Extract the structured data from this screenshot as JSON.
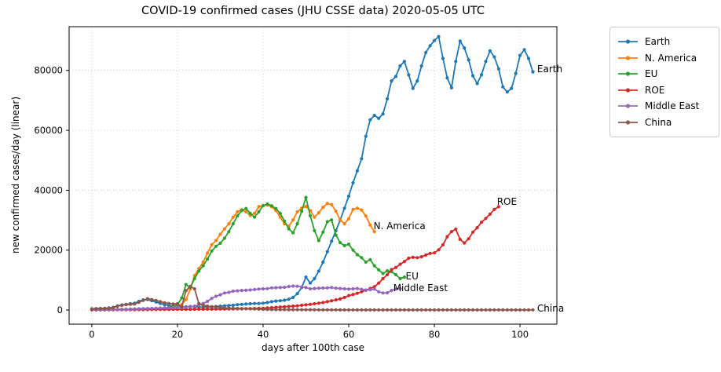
{
  "title": "COVID-19 confirmed cases (JHU CSSE data) 2020-05-05 UTC",
  "colors": {
    "background": "#ffffff",
    "frame": "#000000",
    "grid": "#c9c9c9",
    "text": "#000000",
    "legend_border": "#cccccc"
  },
  "chart_data": {
    "type": "line",
    "title": "COVID-19 confirmed cases (JHU CSSE data) 2020-05-05 UTC",
    "xlabel": "days after 100th case",
    "ylabel": "new confirmed cases/day (linear)",
    "xlim": [
      -5.3,
      108.6
    ],
    "ylim": [
      -4700,
      94600
    ],
    "xticks": [
      0,
      20,
      40,
      60,
      80,
      100
    ],
    "yticks": [
      0,
      20000,
      40000,
      60000,
      80000
    ],
    "grid": true,
    "grid_style": "dotted",
    "marker": "circle",
    "line_width": 1.8,
    "marker_radius": 2.1,
    "legend_position": "outside-right",
    "series": [
      {
        "name": "Earth",
        "color": "#1f77b4",
        "x_start": 0,
        "annotation": {
          "text": "Earth",
          "x": 104,
          "y": 80500
        },
        "values": [
          400,
          500,
          550,
          600,
          700,
          900,
          1400,
          1700,
          1900,
          2100,
          2300,
          2900,
          3400,
          3500,
          3100,
          2700,
          2200,
          1800,
          1500,
          1300,
          1200,
          1100,
          1100,
          1200,
          1100,
          1000,
          1000,
          1000,
          1100,
          1200,
          1300,
          1400,
          1500,
          1600,
          1800,
          1900,
          2000,
          2100,
          2200,
          2200,
          2300,
          2500,
          2800,
          3000,
          3100,
          3300,
          3600,
          4200,
          5500,
          7500,
          11000,
          9000,
          10500,
          13000,
          16000,
          19500,
          23000,
          26500,
          30000,
          34000,
          38000,
          42500,
          46500,
          50500,
          58000,
          63500,
          65000,
          64000,
          65500,
          70500,
          76500,
          78000,
          81500,
          83000,
          78500,
          74000,
          76500,
          81500,
          86000,
          88200,
          90000,
          91300,
          84000,
          77500,
          74200,
          83000,
          89800,
          87500,
          83500,
          78200,
          75600,
          78500,
          83000,
          86500,
          84500,
          80500,
          74500,
          72800,
          74000,
          79000,
          85000,
          86900,
          84000,
          79500
        ]
      },
      {
        "name": "N. America",
        "color": "#ff7f0e",
        "x_start": 0,
        "annotation": {
          "text": "N. America",
          "x": 65.8,
          "y": 28000
        },
        "values": [
          100,
          120,
          140,
          160,
          180,
          200,
          220,
          250,
          280,
          310,
          350,
          400,
          450,
          500,
          550,
          600,
          650,
          700,
          800,
          1000,
          1300,
          1800,
          3500,
          7000,
          11500,
          13800,
          16000,
          19000,
          21800,
          23200,
          25300,
          27100,
          28800,
          31000,
          32800,
          33500,
          32800,
          31600,
          32300,
          34500,
          34900,
          35100,
          34500,
          33200,
          31000,
          28800,
          28000,
          30100,
          32800,
          34000,
          34600,
          33200,
          31000,
          32500,
          34300,
          35600,
          35200,
          33000,
          30100,
          28800,
          30500,
          33600,
          34000,
          33400,
          31400,
          28400,
          26200
        ]
      },
      {
        "name": "EU",
        "color": "#2ca02c",
        "x_start": 0,
        "annotation": {
          "text": "EU",
          "x": 73.3,
          "y": 11300
        },
        "values": [
          100,
          110,
          120,
          130,
          140,
          150,
          160,
          180,
          200,
          220,
          250,
          280,
          320,
          360,
          400,
          450,
          550,
          700,
          900,
          1300,
          1750,
          4000,
          8500,
          7500,
          10500,
          13000,
          14800,
          17000,
          19700,
          21300,
          22300,
          24000,
          26200,
          28800,
          31400,
          33200,
          33900,
          32300,
          31000,
          32800,
          34800,
          35400,
          34800,
          33900,
          32300,
          29700,
          27100,
          25800,
          28800,
          33000,
          37600,
          31500,
          26500,
          23200,
          26000,
          29500,
          30100,
          25000,
          22500,
          21500,
          22000,
          20000,
          18500,
          17500,
          16000,
          16800,
          14800,
          13400,
          12200,
          13100,
          12800,
          11800,
          10500,
          11000
        ]
      },
      {
        "name": "ROE",
        "color": "#d62728",
        "x_start": 0,
        "annotation": {
          "text": "ROE",
          "x": 94.6,
          "y": 36200
        },
        "values": [
          50,
          55,
          60,
          65,
          70,
          80,
          90,
          100,
          110,
          120,
          130,
          140,
          150,
          160,
          170,
          180,
          190,
          200,
          210,
          220,
          230,
          240,
          250,
          260,
          270,
          280,
          290,
          300,
          310,
          320,
          330,
          340,
          360,
          380,
          400,
          420,
          450,
          480,
          520,
          560,
          600,
          700,
          800,
          900,
          1000,
          1100,
          1200,
          1300,
          1400,
          1600,
          1750,
          1900,
          2100,
          2300,
          2500,
          2800,
          3100,
          3400,
          3700,
          4200,
          4800,
          5200,
          5600,
          6100,
          6600,
          7200,
          7800,
          9000,
          10500,
          11800,
          13500,
          14200,
          15300,
          16200,
          17300,
          17600,
          17500,
          17800,
          18350,
          18900,
          19100,
          20100,
          21800,
          24500,
          26200,
          27000,
          23600,
          22400,
          23800,
          26000,
          27500,
          29300,
          30600,
          32000,
          33600,
          34500
        ]
      },
      {
        "name": "Middle East",
        "color": "#9467bd",
        "x_start": 0,
        "annotation": {
          "text": "Middle East",
          "x": 70.4,
          "y": 7400
        },
        "values": [
          100,
          110,
          120,
          130,
          140,
          160,
          180,
          200,
          250,
          300,
          350,
          400,
          450,
          500,
          550,
          600,
          650,
          700,
          750,
          800,
          850,
          900,
          1000,
          1100,
          1300,
          1700,
          2200,
          2900,
          3900,
          4600,
          5100,
          5700,
          5900,
          6300,
          6400,
          6550,
          6600,
          6700,
          6850,
          7000,
          7100,
          7150,
          7400,
          7450,
          7500,
          7600,
          7860,
          8000,
          7950,
          7700,
          7500,
          7100,
          7200,
          7300,
          7350,
          7400,
          7500,
          7300,
          7200,
          7100,
          7000,
          7100,
          7200,
          6900,
          6700,
          6800,
          7000,
          6100,
          5700,
          5750,
          6550,
          7000,
          7200
        ]
      },
      {
        "name": "China",
        "color": "#8c564b",
        "x_start": 0,
        "annotation": {
          "text": "China",
          "x": 104,
          "y": 600
        },
        "values": [
          300,
          400,
          450,
          500,
          600,
          800,
          1300,
          1600,
          1800,
          1900,
          2000,
          2600,
          3200,
          3800,
          3500,
          3200,
          2800,
          2400,
          2200,
          2000,
          2100,
          1100,
          6500,
          7900,
          7100,
          2200,
          1600,
          1300,
          1100,
          1050,
          900,
          700,
          650,
          600,
          550,
          500,
          450,
          400,
          350,
          300,
          250,
          200,
          180,
          160,
          150,
          140,
          130,
          120,
          110,
          100,
          100,
          90,
          85,
          80,
          75,
          70,
          65,
          60,
          55,
          50,
          50,
          50,
          45,
          45,
          40,
          40,
          40,
          40,
          40,
          40,
          40,
          40,
          40,
          40,
          40,
          40,
          40,
          40,
          40,
          40,
          40,
          40,
          40,
          40,
          40,
          40,
          40,
          40,
          40,
          40,
          40,
          40,
          40,
          40,
          40,
          40,
          40,
          40,
          40,
          40,
          45,
          50,
          55,
          60
        ]
      }
    ]
  },
  "legend": {
    "items": [
      "Earth",
      "N. America",
      "EU",
      "ROE",
      "Middle East",
      "China"
    ]
  }
}
